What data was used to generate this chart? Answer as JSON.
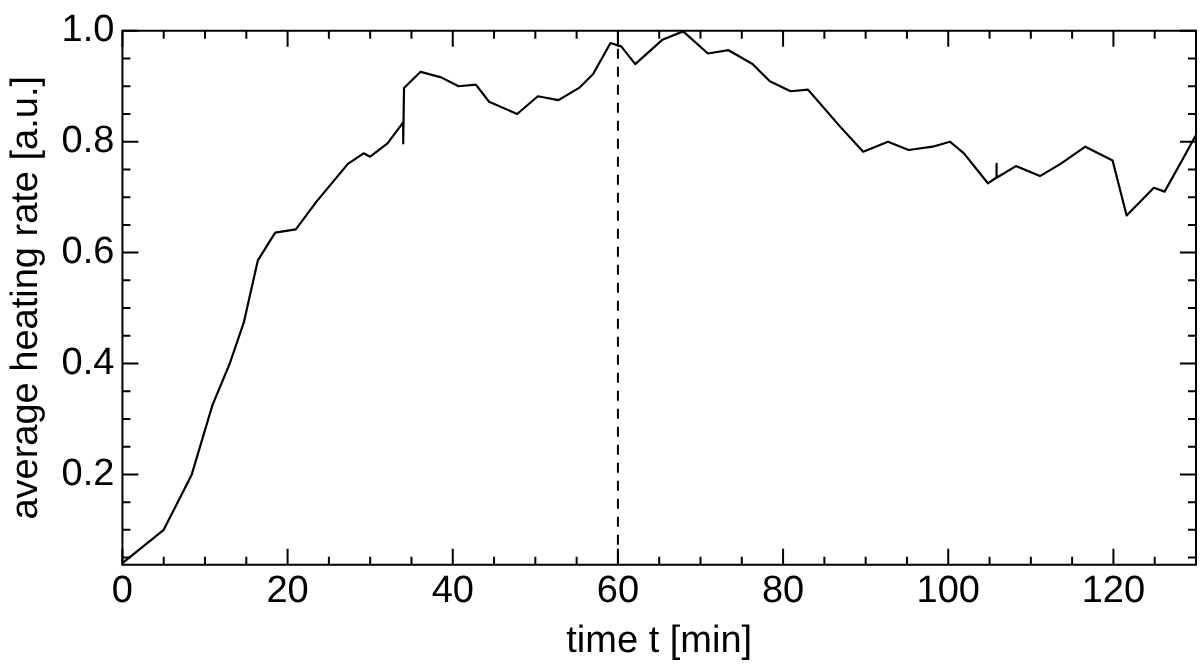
{
  "chart_data": {
    "type": "line",
    "xlabel": "time t [min]",
    "ylabel": "average heating rate [a.u.]",
    "grid": false,
    "legend": false,
    "marker": "none",
    "line_style": "solid",
    "xlim": [
      0,
      130
    ],
    "ylim": [
      0.037,
      1.0
    ],
    "xticks": [
      0,
      {
        "value": 5,
        "label": null
      },
      {
        "value": 10,
        "label": null
      },
      {
        "value": 15,
        "label": null
      },
      20,
      {
        "value": 25,
        "label": null
      },
      {
        "value": 30,
        "label": null
      },
      {
        "value": 35,
        "label": null
      },
      40,
      {
        "value": 45,
        "label": null
      },
      {
        "value": 50,
        "label": null
      },
      {
        "value": 55,
        "label": null
      },
      60,
      {
        "value": 65,
        "label": null
      },
      {
        "value": 70,
        "label": null
      },
      {
        "value": 75,
        "label": null
      },
      80,
      {
        "value": 85,
        "label": null
      },
      {
        "value": 90,
        "label": null
      },
      {
        "value": 95,
        "label": null
      },
      100,
      {
        "value": 105,
        "label": null
      },
      {
        "value": 110,
        "label": null
      },
      {
        "value": 115,
        "label": null
      },
      120,
      {
        "value": 125,
        "label": null
      }
    ],
    "yticks": [
      {
        "value": 0.05,
        "label": null
      },
      {
        "value": 0.1,
        "label": null
      },
      {
        "value": 0.15,
        "label": null
      },
      {
        "value": 0.2,
        "label": "0.2"
      },
      {
        "value": 0.25,
        "label": null
      },
      {
        "value": 0.3,
        "label": null
      },
      {
        "value": 0.35,
        "label": null
      },
      {
        "value": 0.4,
        "label": "0.4"
      },
      {
        "value": 0.45,
        "label": null
      },
      {
        "value": 0.5,
        "label": null
      },
      {
        "value": 0.55,
        "label": null
      },
      {
        "value": 0.6,
        "label": "0.6"
      },
      {
        "value": 0.65,
        "label": null
      },
      {
        "value": 0.7,
        "label": null
      },
      {
        "value": 0.75,
        "label": null
      },
      {
        "value": 0.8,
        "label": "0.8"
      },
      {
        "value": 0.85,
        "label": null
      },
      {
        "value": 0.9,
        "label": null
      },
      {
        "value": 0.95,
        "label": null
      },
      {
        "value": 1.0,
        "label": "1.0"
      }
    ],
    "ref_lines": [
      {
        "axis": "x",
        "value": 60,
        "line_style": "dashed",
        "color": "#000000"
      }
    ],
    "series": [
      {
        "color": "#000000",
        "x": [
          0,
          5,
          8.4,
          10.9,
          13,
          14.7,
          16.4,
          18.5,
          21,
          23.5,
          27.3,
          29.2,
          30,
          32.1,
          34,
          34,
          34.1,
          36.1,
          38.6,
          40.7,
          42.8,
          44.4,
          47.8,
          50.3,
          52.8,
          55.3,
          57,
          59.1,
          60.4,
          62.1,
          65.4,
          67.9,
          70.9,
          73.4,
          76.3,
          78.4,
          80.9,
          83,
          86.8,
          89.7,
          92.7,
          95.2,
          98.1,
          100.2,
          101.9,
          104.8,
          105.8,
          105.8,
          105.9,
          108.2,
          111.1,
          113.6,
          116.6,
          119.9,
          121.6,
          124.9,
          126.2,
          128.3,
          130
        ],
        "values": [
          0.04,
          0.1,
          0.2,
          0.325,
          0.4,
          0.474,
          0.586,
          0.636,
          0.642,
          0.692,
          0.76,
          0.779,
          0.773,
          0.797,
          0.835,
          0.797,
          0.897,
          0.926,
          0.916,
          0.9,
          0.903,
          0.872,
          0.85,
          0.882,
          0.875,
          0.897,
          0.922,
          0.978,
          0.972,
          0.94,
          0.984,
          0.999,
          0.959,
          0.965,
          0.94,
          0.909,
          0.891,
          0.894,
          0.829,
          0.782,
          0.8,
          0.785,
          0.791,
          0.8,
          0.779,
          0.725,
          0.735,
          0.76,
          0.735,
          0.756,
          0.738,
          0.76,
          0.791,
          0.766,
          0.667,
          0.717,
          0.71,
          0.766,
          0.812
        ]
      }
    ]
  }
}
